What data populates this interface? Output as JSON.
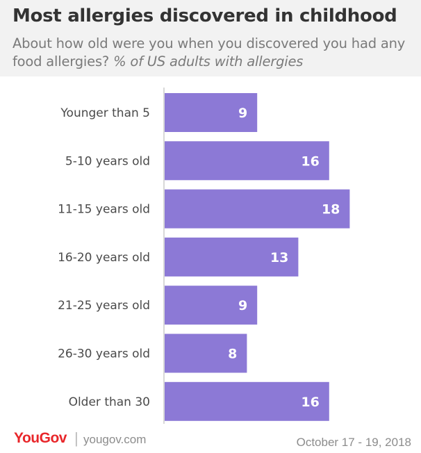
{
  "header": {
    "title": "Most allergies discovered in childhood",
    "subtitle_plain": "About how old were you when you discovered you had any food allergies?",
    "subtitle_italic": "% of US adults with allergies"
  },
  "chart_data": {
    "type": "bar",
    "orientation": "horizontal",
    "categories": [
      "Younger than 5",
      "5-10 years old",
      "11-15 years old",
      "16-20 years old",
      "21-25 years old",
      "26-30 years old",
      "Older than 30"
    ],
    "values": [
      9,
      16,
      18,
      13,
      9,
      8,
      16
    ],
    "xlim": [
      0,
      20
    ],
    "grid": false,
    "legend": "none",
    "bar_color": "#8c79d6",
    "label_color": "#ffffff"
  },
  "footer": {
    "brand": "YouGov",
    "separator": "|",
    "site": "yougov.com",
    "date": "October 17 - 19, 2018"
  },
  "colors": {
    "header_bg": "#f2f2f2",
    "brand_red": "#e8262a",
    "axis": "#cccccc"
  }
}
